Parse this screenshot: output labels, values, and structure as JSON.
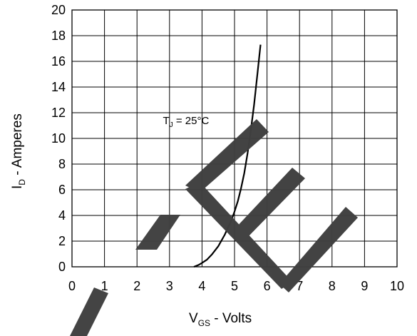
{
  "chart_data": {
    "type": "line",
    "xlabel": {
      "main": "V",
      "sub": "GS",
      "rest": " - Volts"
    },
    "ylabel": {
      "main": "I",
      "sub": "D",
      "rest": " - Amperes"
    },
    "xlim": [
      0,
      10
    ],
    "ylim": [
      0,
      20
    ],
    "x_ticks": [
      "0",
      "1",
      "2",
      "3",
      "4",
      "5",
      "6",
      "7",
      "8",
      "9",
      "10"
    ],
    "y_ticks": [
      "0",
      "2",
      "4",
      "6",
      "8",
      "10",
      "12",
      "14",
      "16",
      "18",
      "20"
    ],
    "grid": true,
    "series": [
      {
        "x": [
          3.75,
          3.9,
          4.0,
          4.15,
          4.3,
          4.5,
          4.7,
          4.9,
          5.0,
          5.1,
          5.2,
          5.3,
          5.4,
          5.5,
          5.6,
          5.7,
          5.8
        ],
        "y": [
          0.0,
          0.15,
          0.3,
          0.55,
          0.95,
          1.6,
          2.5,
          3.6,
          4.3,
          5.1,
          6.1,
          7.3,
          8.8,
          10.6,
          12.6,
          14.9,
          17.3
        ],
        "color": "#000000"
      }
    ],
    "annotation": {
      "main": "T",
      "sub": "J",
      "rest": " = 25°C",
      "x": 4.2,
      "y": 11.0
    }
  },
  "watermark": {
    "color": "#404040"
  }
}
